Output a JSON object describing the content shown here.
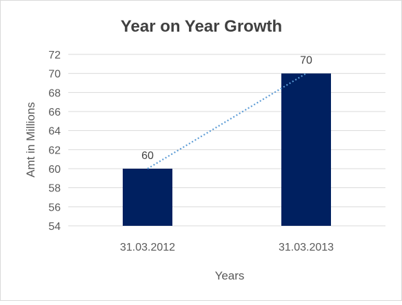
{
  "chart_data": {
    "type": "bar",
    "title": "Year on Year Growth",
    "xlabel": "Years",
    "ylabel": "Amt in Millions",
    "categories": [
      "31.03.2012",
      "31.03.2013"
    ],
    "values": [
      60,
      70
    ],
    "data_labels": [
      "60",
      "70"
    ],
    "ylim": [
      54,
      72
    ],
    "yticks": [
      54,
      56,
      58,
      60,
      62,
      64,
      66,
      68,
      70,
      72
    ],
    "grid": true,
    "trendline": "linear, dotted",
    "colors": {
      "bar": "#002060",
      "trendline": "#5b9bd5",
      "grid": "#d9d9d9",
      "text": "#595959"
    }
  }
}
